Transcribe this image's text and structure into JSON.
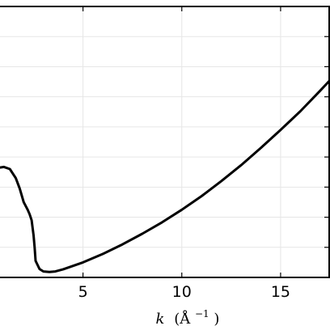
{
  "chart_data": {
    "type": "line",
    "title": "",
    "xlabel": "k (Å⁻¹)",
    "xlabel_parts": {
      "var": "k",
      "unit_open": "(Å",
      "unit_exp": "−1",
      "unit_close": ")"
    },
    "ylabel": "",
    "xlim": [
      0.8,
      17.5
    ],
    "ylim": [
      0,
      9
    ],
    "grid": true,
    "x_ticks": [
      5,
      10,
      15
    ],
    "x_tick_labels": [
      "5",
      "10",
      "15"
    ],
    "y_gridlines": [
      1,
      2,
      3,
      4,
      5,
      6,
      7,
      8,
      9
    ],
    "series": [
      {
        "color": "#000000",
        "x": [
          0.8,
          1.0,
          1.3,
          1.6,
          1.8,
          2.0,
          2.2,
          2.3,
          2.4,
          2.5,
          2.55,
          2.6,
          2.8,
          3.0,
          3.3,
          3.6,
          4.0,
          5.0,
          6.0,
          7.0,
          8.0,
          9.0,
          10.0,
          11.0,
          12.0,
          13.0,
          14.0,
          15.0,
          16.0,
          17.0,
          17.5
        ],
        "y": [
          3.65,
          3.67,
          3.6,
          3.3,
          2.95,
          2.5,
          2.25,
          2.1,
          1.9,
          1.4,
          1.0,
          0.55,
          0.28,
          0.2,
          0.18,
          0.2,
          0.27,
          0.5,
          0.78,
          1.1,
          1.45,
          1.83,
          2.25,
          2.7,
          3.2,
          3.73,
          4.3,
          4.9,
          5.52,
          6.2,
          6.55
        ]
      }
    ]
  }
}
